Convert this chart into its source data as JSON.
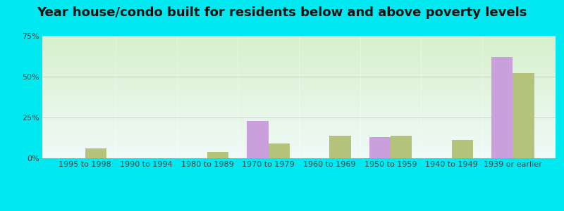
{
  "title": "Year house/condo built for residents below and above poverty levels",
  "categories": [
    "1995 to 1998",
    "1990 to 1994",
    "1980 to 1989",
    "1970 to 1979",
    "1960 to 1969",
    "1950 to 1959",
    "1940 to 1949",
    "1939 or earlier"
  ],
  "below_poverty": [
    0,
    0,
    0,
    23,
    0,
    13,
    0,
    62
  ],
  "above_poverty": [
    6,
    0,
    4,
    9,
    14,
    14,
    11,
    52
  ],
  "below_color": "#c9a0dc",
  "above_color": "#b5c27a",
  "ylim": [
    0,
    75
  ],
  "yticks": [
    0,
    25,
    50,
    75
  ],
  "ytick_labels": [
    "0%",
    "25%",
    "50%",
    "75%"
  ],
  "outer_background": "#00e8f0",
  "bar_width": 0.35,
  "title_fontsize": 13,
  "axis_fontsize": 8,
  "grid_color": "#e8c8e8",
  "bg_top": "#f0faf8",
  "bg_bottom": "#d8f0cc"
}
